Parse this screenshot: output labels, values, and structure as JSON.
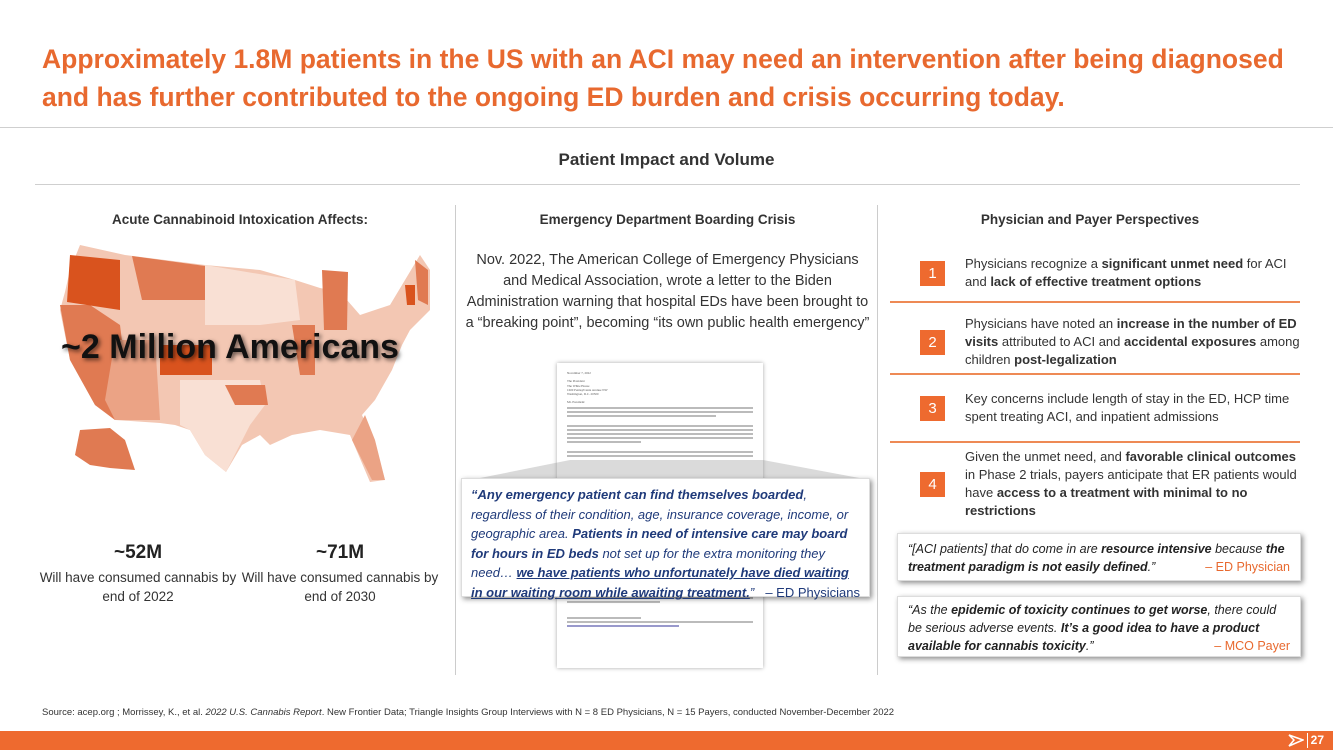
{
  "title": "Approximately 1.8M patients in the US with an ACI may need an intervention after being diagnosed and has further contributed to the ongoing ED burden and crisis occurring today.",
  "section_title": "Patient Impact and Volume",
  "left": {
    "header": "Acute Cannabinoid Intoxication Affects:",
    "map_label": "~2 Million Americans",
    "stats": [
      {
        "value": "~52M",
        "desc": "Will have consumed cannabis by end of 2022"
      },
      {
        "value": "~71M",
        "desc": "Will have consumed cannabis by end of 2030"
      }
    ],
    "map_colors": {
      "darkest": "#D9531E",
      "dark": "#E07A52",
      "mid": "#EBA385",
      "light": "#F3C7B3",
      "lightest": "#F9E0D4"
    }
  },
  "middle": {
    "header": "Emergency Department Boarding Crisis",
    "paragraph": "Nov. 2022, The American College of Emergency Physicians and Medical Association, wrote a letter to the Biden Administration warning that hospital EDs have been brought to a “breaking point”, becoming “its own public health emergency”",
    "letter": {
      "date": "November 7, 2022",
      "address": [
        "The President",
        "The White House",
        "1600 Pennsylvania Avenue NW",
        "Washington, D.C. 20500"
      ],
      "salutation": "Mr. President:"
    },
    "quote": {
      "p1": "“Any emergency patient can find themselves boarded",
      "p2": ", regardless of their condition, age, insurance coverage, income, or geographic area. ",
      "p3": "Patients in need of intensive care may board for hours in ED beds",
      "p4": " not set up for the extra monitoring they need… ",
      "p5": "we have patients who unfortunately have died waiting in our waiting room while awaiting treatment.",
      "p6": "”",
      "attribution": "–  ED Physicians"
    }
  },
  "right": {
    "header": "Physician and Payer Perspectives",
    "items": [
      {
        "num": "1",
        "parts": [
          "Physicians recognize a ",
          "significant unmet need",
          " for ACI and ",
          "lack of effective treatment options",
          ""
        ]
      },
      {
        "num": "2",
        "parts": [
          "Physicians have noted an ",
          "increase in the number of ED visits",
          " attributed to ACI and ",
          "accidental exposures",
          " among children ",
          "post-legalization"
        ]
      },
      {
        "num": "3",
        "parts": [
          "Key concerns include length of stay in the ED, HCP time spent treating ACI, and inpatient admissions"
        ]
      },
      {
        "num": "4",
        "parts": [
          "Given the unmet need, and ",
          "favorable clinical outcomes",
          " in Phase 2 trials, payers anticipate that ER patients would have ",
          "access to a treatment with minimal to no restrictions"
        ]
      }
    ],
    "quote1": {
      "a": "“[ACI patients] that do come in are ",
      "b": "resource intensive",
      "c": " because ",
      "d": "the treatment paradigm is not easily defined",
      "e": ".”",
      "attribution": "–  ED Physician"
    },
    "quote2": {
      "a": "“As the ",
      "b": "epidemic of toxicity continues to get worse",
      "c": ", there could be serious adverse events. ",
      "d": "It’s a good idea to have a product available for cannabis toxicity",
      "e": ".”",
      "attribution": "–  MCO Payer"
    }
  },
  "source": {
    "a": "Source: acep.org ; Morrissey, K., et al. ",
    "b": "2022 U.S. Cannabis Report",
    "c": ". New Frontier Data; Triangle Insights Group Interviews with N = 8 ED Physicians, N = 15 Payers, conducted November-December 2022"
  },
  "page_number": "27",
  "colors": {
    "accent": "#EE6A2F",
    "quote_text": "#1F3A7A"
  }
}
